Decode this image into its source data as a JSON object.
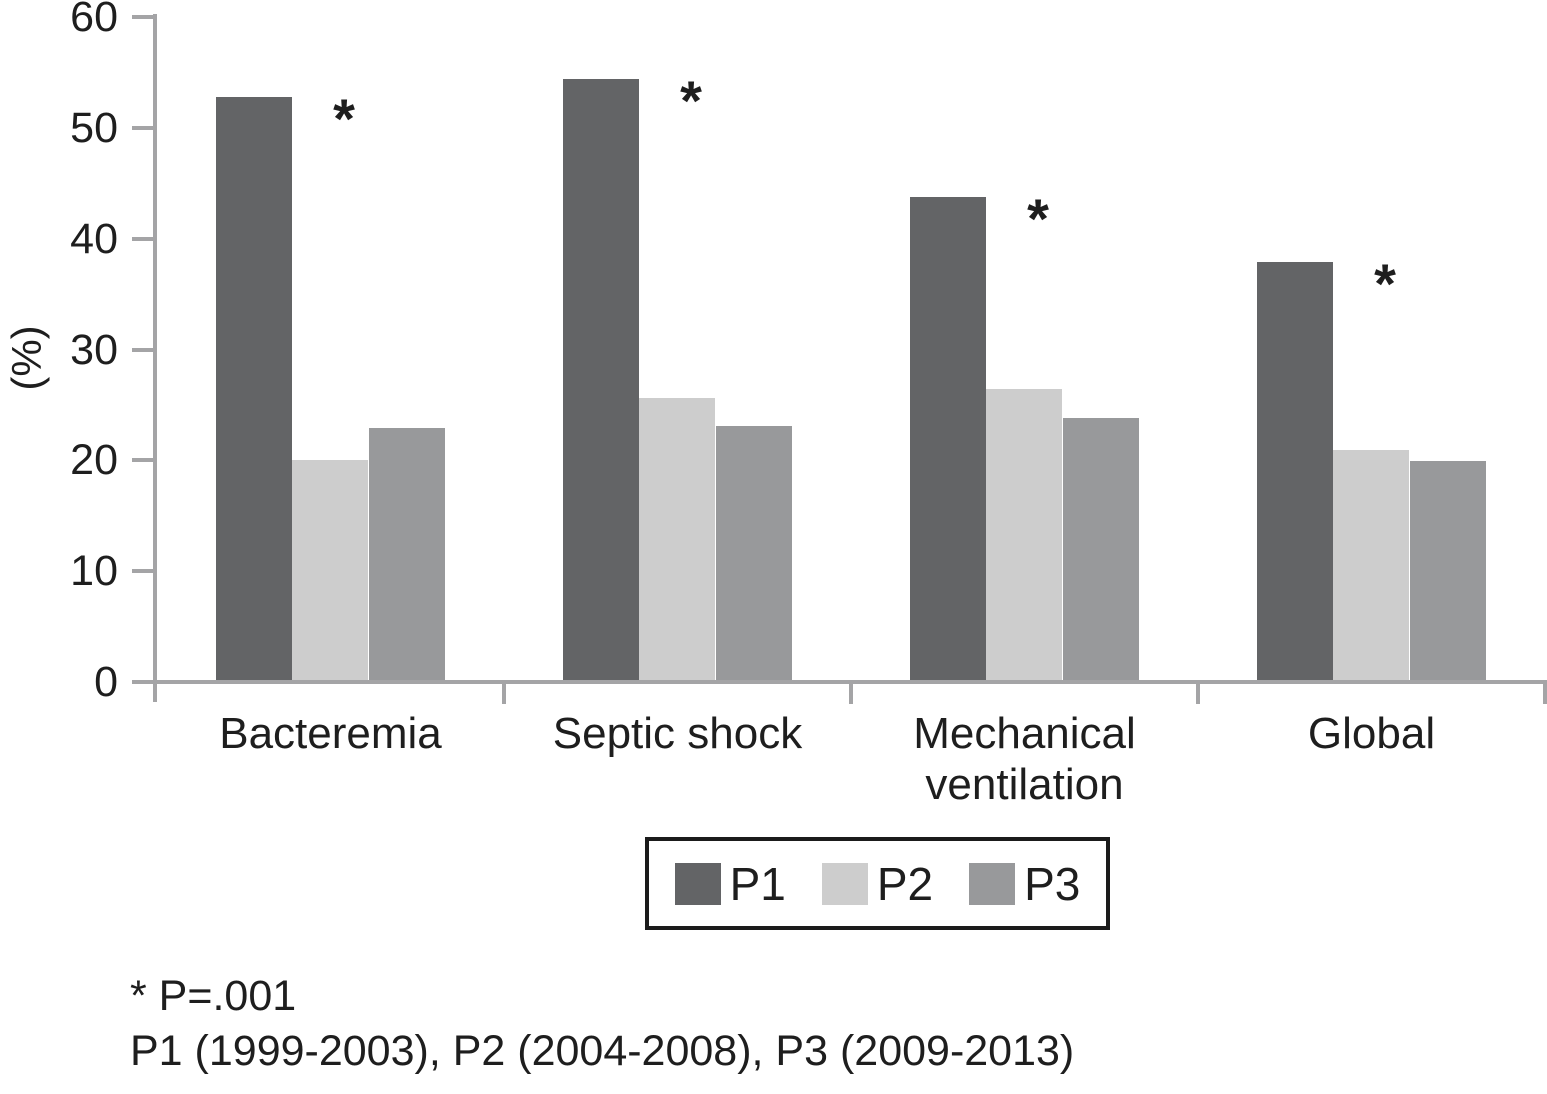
{
  "chart_data": {
    "type": "bar",
    "title": "",
    "xlabel": "",
    "ylabel": "(%)",
    "ylim": [
      0,
      60
    ],
    "yticks": [
      0,
      10,
      20,
      30,
      40,
      50,
      60
    ],
    "grid": false,
    "legend_position": "bottom",
    "categories": [
      "Bacteremia",
      "Septic shock",
      "Mechanical ventilation",
      "Global"
    ],
    "series": [
      {
        "name": "P1",
        "color": "#636466",
        "values": [
          52.8,
          54.4,
          43.8,
          37.9
        ]
      },
      {
        "name": "P2",
        "color": "#cdcdcd",
        "values": [
          20.0,
          25.6,
          26.4,
          20.9
        ]
      },
      {
        "name": "P3",
        "color": "#98999b",
        "values": [
          22.9,
          23.1,
          23.8,
          19.9
        ]
      }
    ],
    "significance_marker": {
      "symbol": "*",
      "meaning": "P=.001",
      "marked_series": "P1",
      "marked_categories": [
        "Bacteremia",
        "Septic shock",
        "Mechanical ventilation",
        "Global"
      ]
    },
    "axis_color": "#a4a4a6",
    "text_color": "#1e1e1e"
  },
  "legend": {
    "items": [
      "P1",
      "P2",
      "P3"
    ]
  },
  "footnotes": {
    "significance": "* P=.001",
    "periods": "P1 (1999-2003), P2 (2004-2008), P3 (2009-2013)"
  }
}
